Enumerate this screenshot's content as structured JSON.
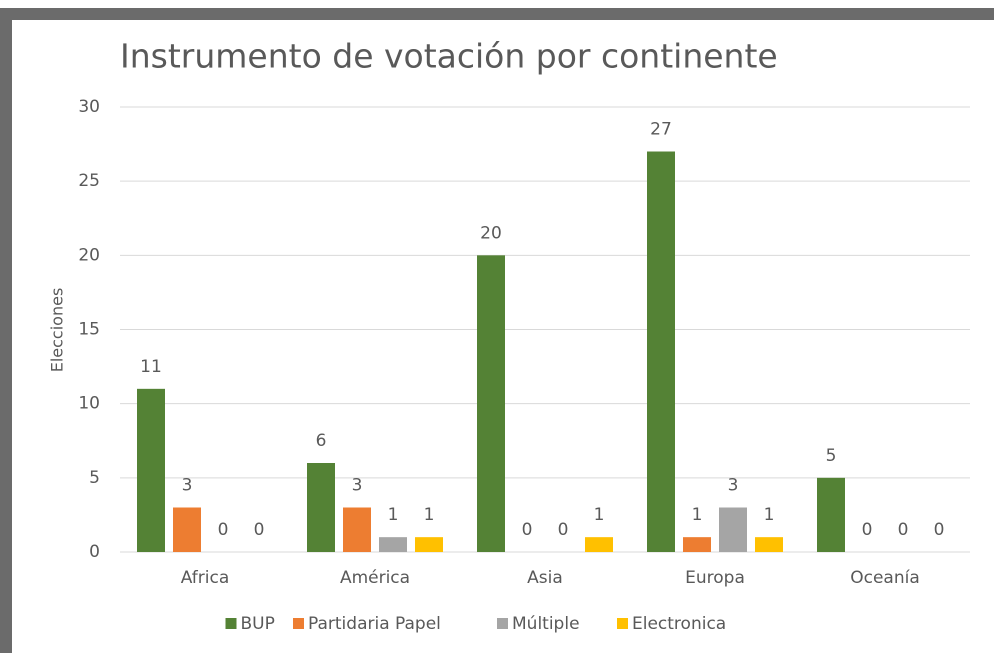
{
  "chart_data": {
    "type": "bar",
    "title": "Instrumento de votación  por continente",
    "y_label": "Elecciones",
    "categories": [
      "Africa",
      "América",
      "Asia",
      "Europa",
      "Oceanía"
    ],
    "series": [
      {
        "name": "BUP",
        "color": "#548235",
        "values": [
          11,
          6,
          20,
          27,
          5
        ]
      },
      {
        "name": "Partidaria Papel",
        "color": "#ed7d31",
        "values": [
          3,
          3,
          0,
          1,
          0
        ]
      },
      {
        "name": "Múltiple",
        "color": "#a5a5a5",
        "values": [
          0,
          1,
          0,
          3,
          0
        ]
      },
      {
        "name": "Electronica",
        "color": "#ffc000",
        "values": [
          0,
          1,
          1,
          1,
          0
        ]
      }
    ],
    "ylim": [
      0,
      30
    ],
    "yticks": [
      0,
      5,
      10,
      15,
      20,
      25,
      30
    ],
    "grid": true,
    "legend": "bottom"
  }
}
